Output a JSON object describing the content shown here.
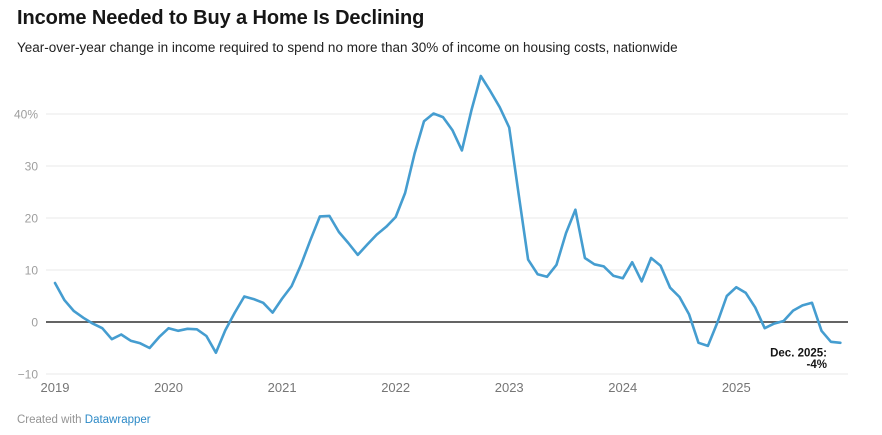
{
  "header": {
    "title": "Income Needed to Buy a Home Is Declining",
    "subtitle": "Year-over-year change in income required to spend no more than 30% of income on housing costs, nationwide"
  },
  "annotation": {
    "line1": "Dec. 2025:",
    "line2": "-4%"
  },
  "footer": {
    "created_with": "Created with ",
    "link_label": "Datawrapper"
  },
  "colors": {
    "line": "#459dd0",
    "zero_line": "#4e4e4e",
    "gridline": "#e9e9e9",
    "y_tick_text": "#9e9e9e",
    "x_tick_text": "#767676",
    "title_text": "#161616",
    "annotation_text": "#151515",
    "link": "#2d8ac7",
    "footer_text": "#949494"
  },
  "chart_data": {
    "type": "line",
    "title": "Income Needed to Buy a Home Is Declining",
    "subtitle": "Year-over-year change in income required to spend no more than 30% of income on housing costs, nationwide",
    "unit": "%",
    "x_start": "2019-01",
    "frequency": "monthly",
    "values": [
      7.5,
      4.2,
      2.1,
      0.8,
      -0.3,
      -1.2,
      -3.3,
      -2.4,
      -3.6,
      -4.1,
      -5.0,
      -2.9,
      -1.2,
      -1.7,
      -1.3,
      -1.4,
      -2.7,
      -5.9,
      -1.6,
      1.8,
      4.9,
      4.4,
      3.7,
      1.8,
      4.5,
      6.9,
      11.0,
      15.8,
      20.3,
      20.4,
      17.3,
      15.2,
      12.9,
      14.9,
      16.8,
      18.3,
      20.2,
      24.8,
      32.4,
      38.6,
      40.1,
      39.4,
      36.9,
      33.0,
      40.7,
      47.3,
      44.4,
      41.3,
      37.4,
      24.5,
      12.0,
      9.2,
      8.7,
      11.0,
      17.1,
      21.6,
      12.3,
      11.1,
      10.7,
      8.9,
      8.4,
      11.5,
      7.8,
      12.3,
      10.8,
      6.6,
      4.8,
      1.5,
      -4.0,
      -4.6,
      -0.1,
      5.0,
      6.7,
      5.6,
      2.8,
      -1.2,
      -0.3,
      0.2,
      2.2,
      3.2,
      3.7,
      -1.7,
      -3.8,
      -4.0
    ],
    "x_tick_labels": [
      "2019",
      "2020",
      "2021",
      "2022",
      "2023",
      "2024",
      "2025"
    ],
    "x_tick_month_index": [
      0,
      12,
      24,
      36,
      48,
      60,
      72
    ],
    "y_ticks": {
      "values": [
        40,
        30,
        20,
        10,
        0,
        -10
      ],
      "labels": [
        "40%",
        "30",
        "20",
        "10",
        "0",
        "−10"
      ]
    },
    "ylim": [
      -10,
      48
    ],
    "grid": "horizontal",
    "legend": "none",
    "annotation": {
      "label": [
        "Dec. 2025:",
        "-4%"
      ],
      "month_index": 83,
      "value": -4
    }
  }
}
